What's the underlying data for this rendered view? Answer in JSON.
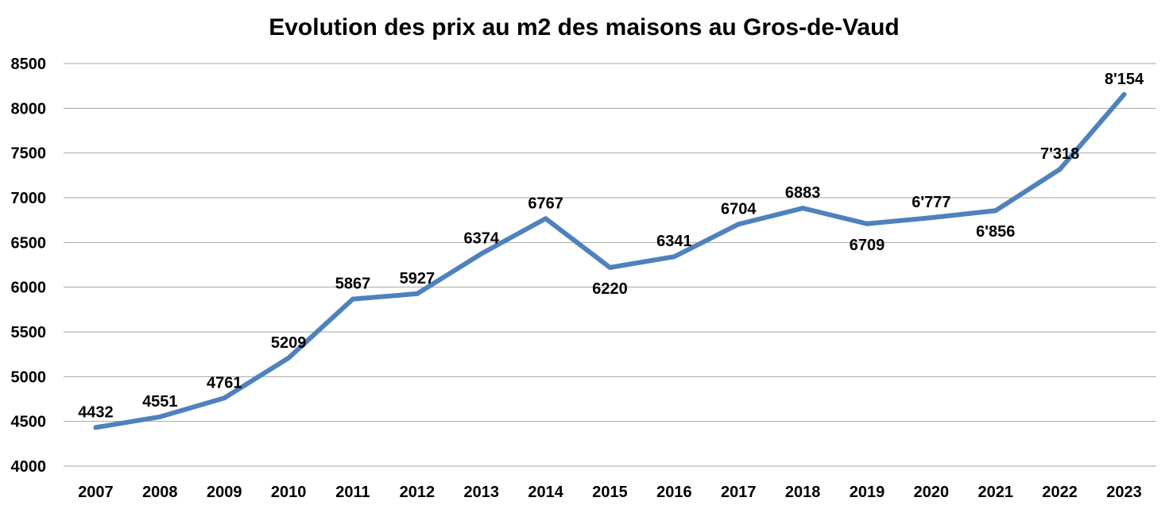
{
  "chart_data": {
    "type": "line",
    "title": "Evolution des prix au m2 des maisons au Gros-de-Vaud",
    "xlabel": "",
    "ylabel": "",
    "categories": [
      "2007",
      "2008",
      "2009",
      "2010",
      "2011",
      "2012",
      "2013",
      "2014",
      "2015",
      "2016",
      "2017",
      "2018",
      "2019",
      "2020",
      "2021",
      "2022",
      "2023"
    ],
    "series": [
      {
        "values": [
          4432,
          4551,
          4761,
          5209,
          5867,
          5927,
          6374,
          6767,
          6220,
          6341,
          6704,
          6883,
          6709,
          6777,
          6856,
          7318,
          8154
        ],
        "labels": [
          "4432",
          "4551",
          "4761",
          "5209",
          "5867",
          "5927",
          "6374",
          "6767",
          "6220",
          "6341",
          "6704",
          "6883",
          "6709",
          "6'777",
          "6'856",
          "7'318",
          "8'154"
        ],
        "label_position": [
          "above",
          "above",
          "above",
          "above",
          "above",
          "above",
          "above",
          "above",
          "below",
          "above",
          "above",
          "above",
          "below",
          "above",
          "below",
          "above",
          "above"
        ],
        "color": "#4f81bd"
      }
    ],
    "ylim": [
      4000,
      8500
    ],
    "yticks": [
      4000,
      4500,
      5000,
      5500,
      6000,
      6500,
      7000,
      7500,
      8000,
      8500
    ],
    "grid": true,
    "legend": "none"
  }
}
